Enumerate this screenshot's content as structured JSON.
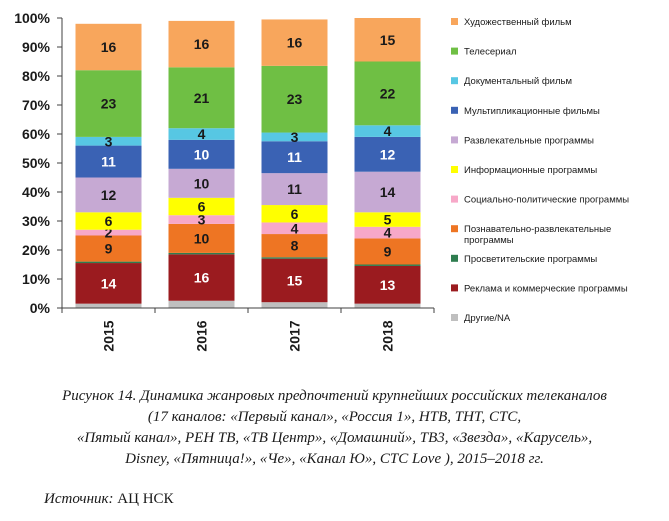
{
  "chart_data": {
    "type": "bar",
    "stacked": true,
    "percent": true,
    "categories": [
      "2015",
      "2016",
      "2017",
      "2018"
    ],
    "ylim": [
      0,
      100
    ],
    "yticks": [
      "0%",
      "10%",
      "20%",
      "30%",
      "40%",
      "50%",
      "60%",
      "70%",
      "80%",
      "90%",
      "100%"
    ],
    "legend_position": "right",
    "grid": false,
    "series": [
      {
        "name": "Другие/NA",
        "color": "#bfbfbf",
        "label_color": "#ffffff",
        "show_labels": false,
        "values": [
          1.5,
          2.5,
          2,
          1.5
        ]
      },
      {
        "name": "Реклама и коммерческие программы",
        "color": "#9b1b1f",
        "label_color": "#ffffff",
        "show_labels": true,
        "values": [
          14,
          16,
          15,
          13
        ]
      },
      {
        "name": "Просветительские программы",
        "color": "#2e7d4f",
        "label_color": "#ffffff",
        "show_labels": false,
        "values": [
          0.5,
          0.5,
          0.5,
          0.5
        ]
      },
      {
        "name": "Познавательно-развлекательные программы",
        "color": "#ee7523",
        "label_color": "#1a1a1a",
        "show_labels": true,
        "values": [
          9,
          10,
          8,
          9
        ]
      },
      {
        "name": "Социально-политические программы",
        "color": "#f7a8c8",
        "label_color": "#1a1a1a",
        "show_labels": true,
        "values": [
          2,
          3,
          4,
          4
        ]
      },
      {
        "name": "Информационные программы",
        "color": "#ffff00",
        "label_color": "#1a1a1a",
        "show_labels": true,
        "values": [
          6,
          6,
          6,
          5
        ]
      },
      {
        "name": "Развлекательные программы",
        "color": "#c6a9d3",
        "label_color": "#1a1a1a",
        "show_labels": true,
        "values": [
          12,
          10,
          11,
          14
        ]
      },
      {
        "name": "Мультипликационные фильмы",
        "color": "#3a62b4",
        "label_color": "#ffffff",
        "show_labels": true,
        "values": [
          11,
          10,
          11,
          12
        ]
      },
      {
        "name": "Документальный фильм",
        "color": "#57c7e3",
        "label_color": "#1a1a1a",
        "show_labels": true,
        "values": [
          3,
          4,
          3,
          4
        ]
      },
      {
        "name": "Телесериал",
        "color": "#6fbf44",
        "label_color": "#1a1a1a",
        "show_labels": true,
        "values": [
          23,
          21,
          23,
          22
        ]
      },
      {
        "name": "Художественный фильм",
        "color": "#f8a65c",
        "label_color": "#1a1a1a",
        "show_labels": true,
        "values": [
          16,
          16,
          16,
          15
        ]
      }
    ],
    "legend": [
      {
        "label": "Художественный фильм",
        "color": "#f8a65c"
      },
      {
        "label": "Телесериал",
        "color": "#6fbf44"
      },
      {
        "label": "Документальный фильм",
        "color": "#57c7e3"
      },
      {
        "label": "Мультипликационные фильмы",
        "color": "#3a62b4"
      },
      {
        "label": "Развлекательные программы",
        "color": "#c6a9d3"
      },
      {
        "label": "Информационные программы",
        "color": "#ffff00"
      },
      {
        "label": "Социально-политические программы",
        "color": "#f7a8c8"
      },
      {
        "label": "Познавательно-развлекательные программы",
        "color": "#ee7523"
      },
      {
        "label": "Просветительские программы",
        "color": "#2e7d4f"
      },
      {
        "label": "Реклама и коммерческие программы",
        "color": "#9b1b1f"
      },
      {
        "label": "Другие/NA",
        "color": "#bfbfbf"
      }
    ]
  },
  "caption": {
    "lines": [
      "Рисунок 14. Динамика жанровых предпочтений крупнейших российских телеканалов",
      "(17 каналов: «Первый канал», «Россия 1», НТВ, ТНТ, СТС,",
      "«Пятый канал», РЕН ТВ, «ТВ Центр», «Домашний», ТВ3, «Звезда», «Карусель»,",
      "Disney, «Пятница!», «Че», «Канал Ю», СТС Love ), 2015–2018 гг."
    ]
  },
  "source": {
    "label": "Источник:",
    "value": "АЦ НСК"
  }
}
